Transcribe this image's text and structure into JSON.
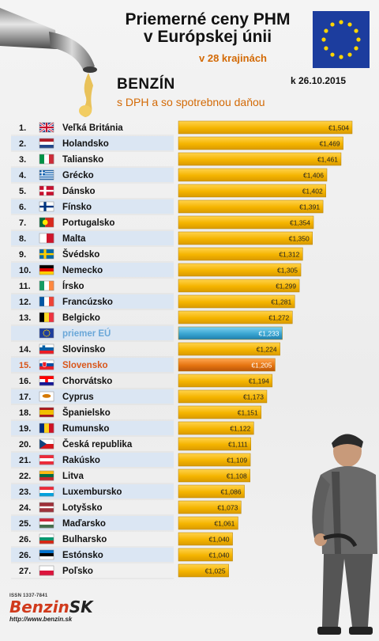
{
  "header": {
    "title_line1": "Priemerné ceny PHM",
    "title_line2": "v Európskej únii",
    "countries_note": "v 28 krajinách",
    "fuel": "BENZÍN",
    "subtitle": "s DPH a so spotrebnou daňou",
    "date": "k 26.10.2015"
  },
  "footer": {
    "issn": "ISSN 1337-7841",
    "brand_part1": "Benzin",
    "brand_part2": "SK",
    "url": "http://www.benzin.sk"
  },
  "colors": {
    "bar": "#f5b400",
    "bar_edge": "#b37e00",
    "eu_bar": "#3aa6d2",
    "sk_bar": "#e57410",
    "sk_text": "#d9561a",
    "eu_text": "#6aa7d8",
    "stripe": "#dbe6f3"
  },
  "chart_data": {
    "type": "bar",
    "orientation": "horizontal",
    "unit": "€",
    "rows": [
      {
        "rank": "1.",
        "country": "Veľká Británia",
        "value": 1.504,
        "label": "€1,504",
        "flag": "united-kingdom-flag"
      },
      {
        "rank": "2.",
        "country": "Holandsko",
        "value": 1.469,
        "label": "€1,469",
        "flag": "netherlands-flag"
      },
      {
        "rank": "3.",
        "country": "Taliansko",
        "value": 1.461,
        "label": "€1,461",
        "flag": "italy-flag"
      },
      {
        "rank": "4.",
        "country": "Grécko",
        "value": 1.406,
        "label": "€1,406",
        "flag": "greece-flag"
      },
      {
        "rank": "5.",
        "country": "Dánsko",
        "value": 1.402,
        "label": "€1,402",
        "flag": "denmark-flag"
      },
      {
        "rank": "6.",
        "country": "Fínsko",
        "value": 1.391,
        "label": "€1,391",
        "flag": "finland-flag"
      },
      {
        "rank": "7.",
        "country": "Portugalsko",
        "value": 1.354,
        "label": "€1,354",
        "flag": "portugal-flag"
      },
      {
        "rank": "8.",
        "country": "Malta",
        "value": 1.35,
        "label": "€1,350",
        "flag": "malta-flag"
      },
      {
        "rank": "9.",
        "country": "Švédsko",
        "value": 1.312,
        "label": "€1,312",
        "flag": "sweden-flag"
      },
      {
        "rank": "10.",
        "country": "Nemecko",
        "value": 1.305,
        "label": "€1,305",
        "flag": "germany-flag"
      },
      {
        "rank": "11.",
        "country": "Írsko",
        "value": 1.299,
        "label": "€1,299",
        "flag": "ireland-flag"
      },
      {
        "rank": "12.",
        "country": "Francúzsko",
        "value": 1.281,
        "label": "€1,281",
        "flag": "france-flag"
      },
      {
        "rank": "13.",
        "country": "Belgicko",
        "value": 1.272,
        "label": "€1,272",
        "flag": "belgium-flag"
      },
      {
        "rank": "",
        "country": "priemer EÚ",
        "value": 1.233,
        "label": "€1,233",
        "flag": "eu-flag",
        "special": "eu"
      },
      {
        "rank": "14.",
        "country": "Slovinsko",
        "value": 1.224,
        "label": "€1,224",
        "flag": "slovenia-flag"
      },
      {
        "rank": "15.",
        "country": "Slovensko",
        "value": 1.205,
        "label": "€1,205",
        "flag": "slovakia-flag",
        "special": "sk"
      },
      {
        "rank": "16.",
        "country": "Chorvátsko",
        "value": 1.194,
        "label": "€1,194",
        "flag": "croatia-flag"
      },
      {
        "rank": "17.",
        "country": "Cyprus",
        "value": 1.173,
        "label": "€1,173",
        "flag": "cyprus-flag"
      },
      {
        "rank": "18.",
        "country": "Španielsko",
        "value": 1.151,
        "label": "€1,151",
        "flag": "spain-flag"
      },
      {
        "rank": "19.",
        "country": "Rumunsko",
        "value": 1.122,
        "label": "€1,122",
        "flag": "romania-flag"
      },
      {
        "rank": "20.",
        "country": "Česká republika",
        "value": 1.111,
        "label": "€1,111",
        "flag": "czech-flag"
      },
      {
        "rank": "21.",
        "country": "Rakúsko",
        "value": 1.109,
        "label": "€1,109",
        "flag": "austria-flag"
      },
      {
        "rank": "22.",
        "country": "Litva",
        "value": 1.108,
        "label": "€1,108",
        "flag": "lithuania-flag"
      },
      {
        "rank": "23.",
        "country": "Luxembursko",
        "value": 1.086,
        "label": "€1,086",
        "flag": "luxembourg-flag"
      },
      {
        "rank": "24.",
        "country": "Lotyšsko",
        "value": 1.073,
        "label": "€1,073",
        "flag": "latvia-flag"
      },
      {
        "rank": "25.",
        "country": "Maďarsko",
        "value": 1.061,
        "label": "€1,061",
        "flag": "hungary-flag"
      },
      {
        "rank": "26.",
        "country": "Bulharsko",
        "value": 1.04,
        "label": "€1,040",
        "flag": "bulgaria-flag"
      },
      {
        "rank": "26.",
        "country": "Estónsko",
        "value": 1.04,
        "label": "€1,040",
        "flag": "estonia-flag"
      },
      {
        "rank": "27.",
        "country": "Poľsko",
        "value": 1.025,
        "label": "€1,025",
        "flag": "poland-flag"
      }
    ]
  }
}
